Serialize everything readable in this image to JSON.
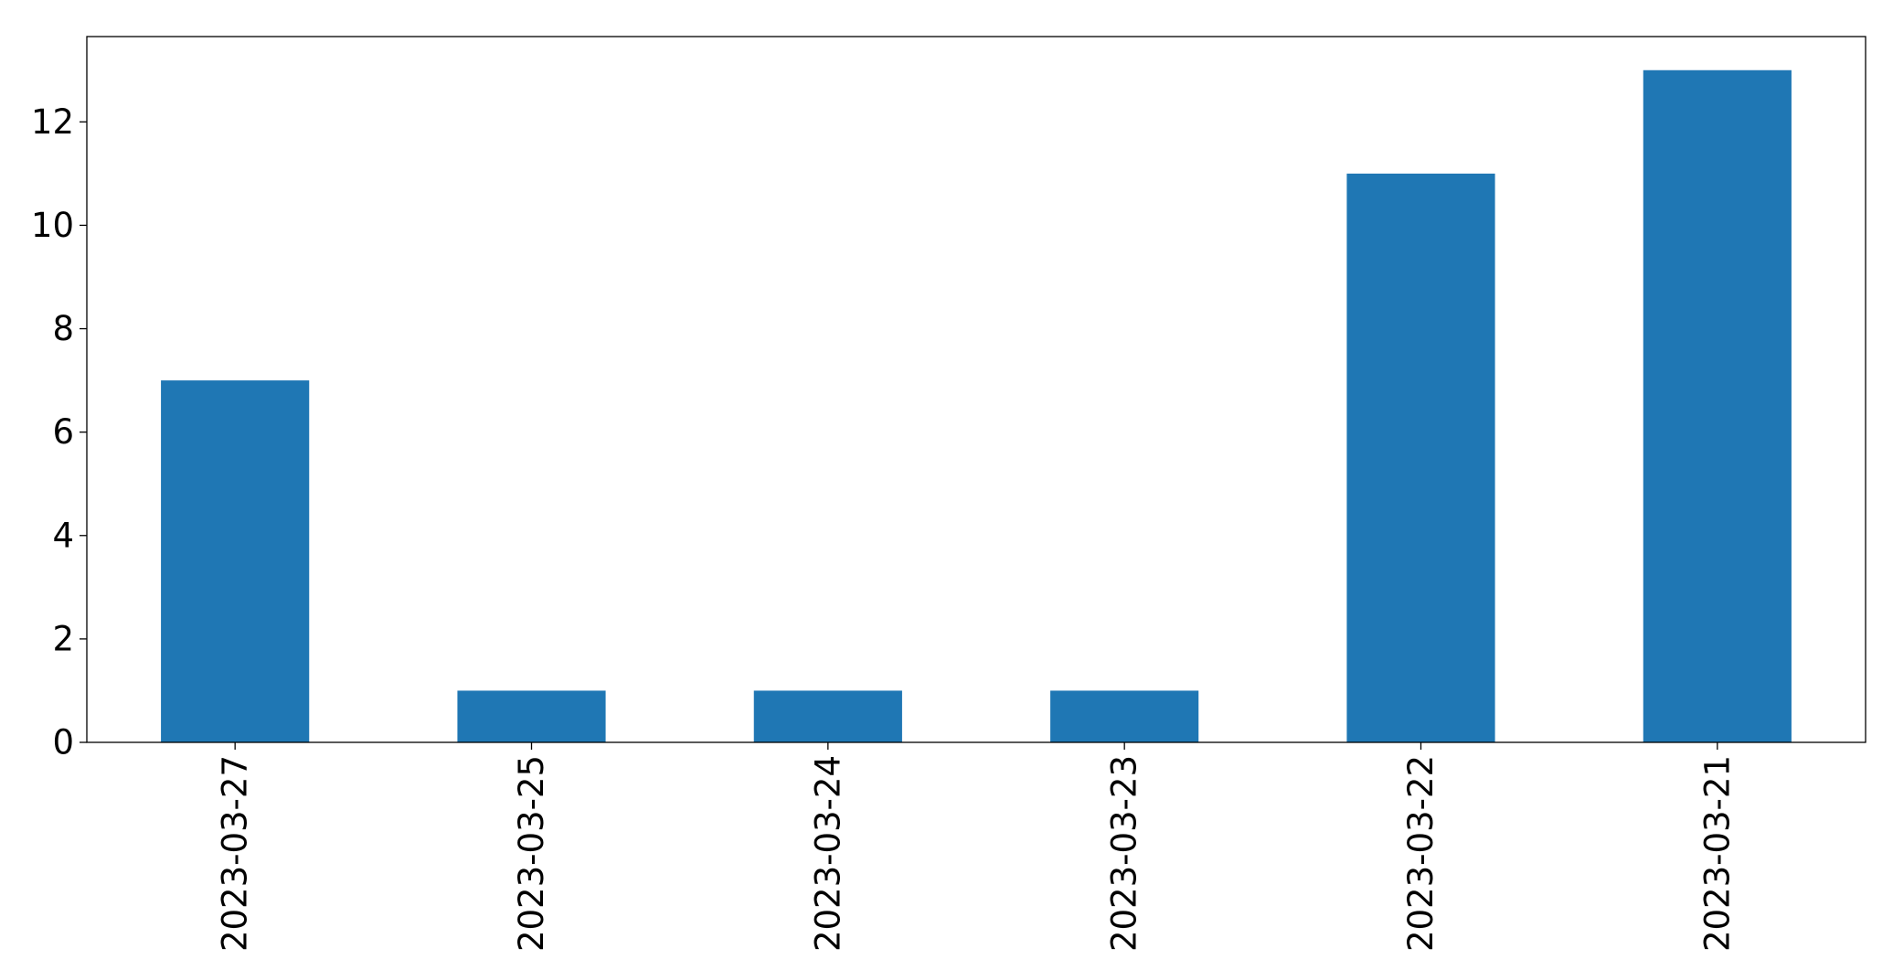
{
  "chart_data": {
    "type": "bar",
    "categories": [
      "2023-03-27",
      "2023-03-25",
      "2023-03-24",
      "2023-03-23",
      "2023-03-22",
      "2023-03-21"
    ],
    "values": [
      7,
      1,
      1,
      1,
      11,
      13
    ],
    "title": "",
    "xlabel": "",
    "ylabel": "",
    "ylim": [
      0,
      13.65
    ],
    "yticks": [
      0,
      2,
      4,
      6,
      8,
      10,
      12
    ],
    "grid": false,
    "legend": "none",
    "bar_color": "#1f77b4"
  }
}
